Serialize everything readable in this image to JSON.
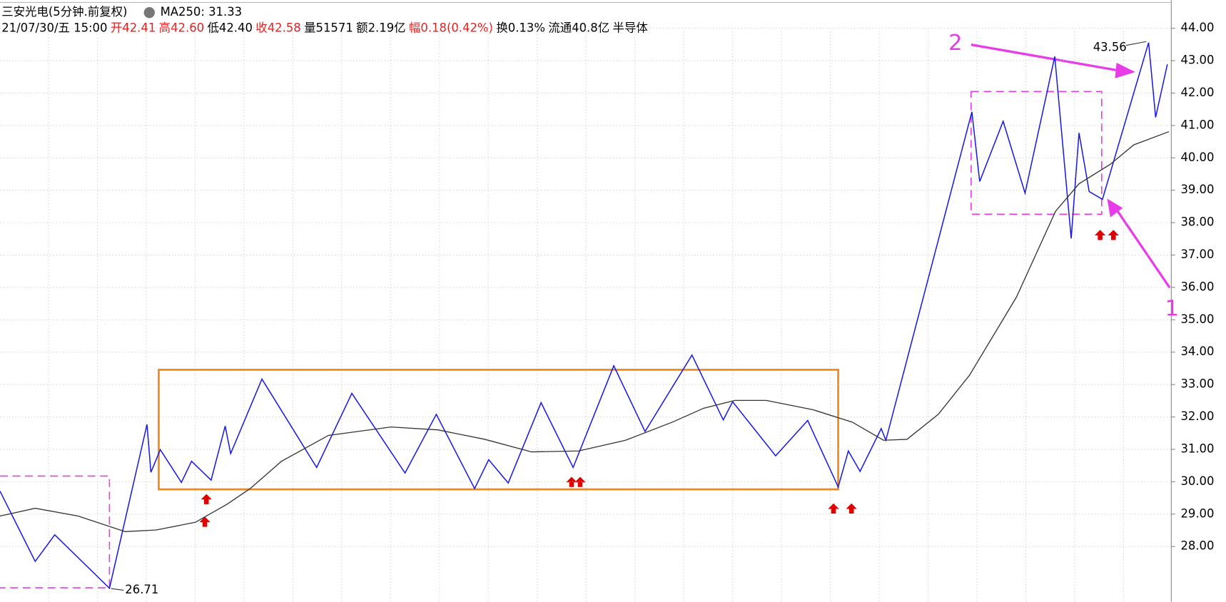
{
  "header": {
    "stock": "三安光电(5分钟.前复权)",
    "ma": "MA250: 31.33",
    "fields": [
      {
        "text": "21/07/30/五 15:00",
        "color": "#000"
      },
      {
        "text": "开42.41",
        "color": "#e02020"
      },
      {
        "text": "高42.60",
        "color": "#e02020"
      },
      {
        "text": "低42.40",
        "color": "#000"
      },
      {
        "text": "收42.58",
        "color": "#e02020"
      },
      {
        "text": "量51571",
        "color": "#000"
      },
      {
        "text": "额2.19亿",
        "color": "#000"
      },
      {
        "text": "幅0.18(0.42%)",
        "color": "#e02020"
      },
      {
        "text": "换0.13%",
        "color": "#000"
      },
      {
        "text": "流通40.8亿",
        "color": "#000"
      },
      {
        "text": "半导体",
        "color": "#000"
      }
    ]
  },
  "chart_data": {
    "type": "line",
    "high_label": "43.56",
    "low_label": "26.71",
    "note_1": "1",
    "note_2": "2",
    "xlim": [
      0,
      1498
    ],
    "ylim": [
      26.29,
      44.87
    ],
    "yticks": [
      {
        "value": 28,
        "label": "28.00"
      },
      {
        "value": 29,
        "label": "29.00"
      },
      {
        "value": 30,
        "label": "30.00"
      },
      {
        "value": 31,
        "label": "31.00"
      },
      {
        "value": 32,
        "label": "32.00"
      },
      {
        "value": 33,
        "label": "33.00"
      },
      {
        "value": 34,
        "label": "34.00"
      },
      {
        "value": 35,
        "label": "35.00"
      },
      {
        "value": 36,
        "label": "36.00"
      },
      {
        "value": 37,
        "label": "37.00"
      },
      {
        "value": 38,
        "label": "38.00"
      },
      {
        "value": 39,
        "label": "39.00"
      },
      {
        "value": 40,
        "label": "40.00"
      },
      {
        "value": 41,
        "label": "41.00"
      },
      {
        "value": 42,
        "label": "42.00"
      },
      {
        "value": 43,
        "label": "43.00"
      },
      {
        "value": 44,
        "label": "44.00"
      }
    ],
    "grid": true,
    "series": [
      {
        "color": "#1a1ae6",
        "x": [
          0,
          45,
          70,
          140,
          188,
          193,
          205,
          232,
          245,
          270,
          288,
          295,
          335,
          405,
          450,
          518,
          558,
          607,
          625,
          650,
          692,
          733,
          785,
          825,
          885,
          925,
          937,
          992,
          1033,
          1072,
          1085,
          1100,
          1127,
          1133,
          1243,
          1253,
          1283,
          1311,
          1349,
          1370,
          1380,
          1393,
          1410,
          1469,
          1478,
          1493
        ],
        "values": [
          29.71,
          27.54,
          28.36,
          26.71,
          31.77,
          30.29,
          30.99,
          29.98,
          30.63,
          30.05,
          31.72,
          30.87,
          33.17,
          30.44,
          32.73,
          30.27,
          32.08,
          29.79,
          30.68,
          29.96,
          32.44,
          30.44,
          33.58,
          31.55,
          33.91,
          31.91,
          32.47,
          30.8,
          31.89,
          29.84,
          30.95,
          30.32,
          31.64,
          31.28,
          41.42,
          39.27,
          41.13,
          38.91,
          43.13,
          37.51,
          40.77,
          38.96,
          38.72,
          43.56,
          41.25,
          42.89
        ]
      },
      {
        "color": "#333333",
        "x": [
          0,
          45,
          100,
          160,
          200,
          250,
          290,
          320,
          360,
          420,
          500,
          560,
          620,
          680,
          740,
          800,
          860,
          900,
          940,
          980,
          1040,
          1090,
          1130,
          1160,
          1200,
          1240,
          1300,
          1350,
          1380,
          1420,
          1450,
          1495
        ],
        "values": [
          28.94,
          29.18,
          28.94,
          28.46,
          28.51,
          28.75,
          29.3,
          29.79,
          30.63,
          31.43,
          31.69,
          31.6,
          31.31,
          30.92,
          30.95,
          31.28,
          31.84,
          32.27,
          32.51,
          32.51,
          32.22,
          31.84,
          31.28,
          31.31,
          32.08,
          33.29,
          35.7,
          38.35,
          39.2,
          39.8,
          40.4,
          40.81
        ]
      }
    ]
  }
}
